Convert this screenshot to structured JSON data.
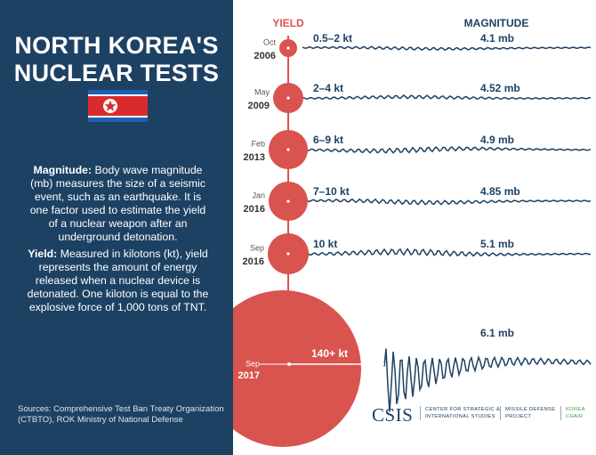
{
  "title": "NORTH KOREA'S NUCLEAR TESTS",
  "definitions": [
    {
      "term": "Magnitude:",
      "text": "Body wave magnitude (mb) measures the size of a seismic event, such as an earthquake. It is one factor used to estimate the yield of a nuclear weapon after an underground detonation."
    },
    {
      "term": "Yield:",
      "text": "Measured in kilotons (kt), yield represents the amount of energy released when a nuclear device is detonated. One kiloton is equal to the explosive force of 1,000 tons of TNT."
    }
  ],
  "sources": "Sources: Comprehensive Test Ban Treaty Organization (CTBTO), ROK Ministry of National Defense",
  "headers": {
    "yield": "YIELD",
    "magnitude": "MAGNITUDE"
  },
  "tests": [
    {
      "month": "Oct",
      "year": "2006",
      "yield": "0.5–2 kt",
      "magnitude": "4.1 mb"
    },
    {
      "month": "May",
      "year": "2009",
      "yield": "2–4 kt",
      "magnitude": "4.52 mb"
    },
    {
      "month": "Feb",
      "year": "2013",
      "yield": "6–9 kt",
      "magnitude": "4.9 mb"
    },
    {
      "month": "Jan",
      "year": "2016",
      "yield": "7–10 kt",
      "magnitude": "4.85 mb"
    },
    {
      "month": "Sep",
      "year": "2016",
      "yield": "10 kt",
      "magnitude": "5.1 mb"
    },
    {
      "month": "Sep",
      "year": "2017",
      "yield": "140+ kt",
      "magnitude": "6.1 mb"
    }
  ],
  "footer": {
    "logo": "CSIS",
    "org": "CENTER FOR STRATEGIC & INTERNATIONAL STUDIES",
    "project": "MISSILE DEFENSE PROJECT",
    "chair": "KOREA CHAIR"
  }
}
